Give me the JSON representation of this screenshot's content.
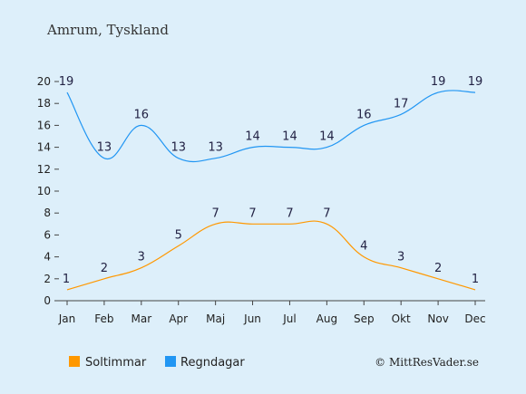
{
  "chart_data": {
    "type": "line",
    "title": "Amrum, Tyskland",
    "categories": [
      "Jan",
      "Feb",
      "Mar",
      "Apr",
      "Maj",
      "Jun",
      "Jul",
      "Aug",
      "Sep",
      "Okt",
      "Nov",
      "Dec"
    ],
    "ylim": [
      0,
      20
    ],
    "yticks": [
      0,
      2,
      4,
      6,
      8,
      10,
      12,
      14,
      16,
      18,
      20
    ],
    "grid": false,
    "legend_position": "bottom-left",
    "series": [
      {
        "name": "Soltimmar",
        "color": "#ff9800",
        "values": [
          1,
          2,
          3,
          5,
          7,
          7,
          7,
          7,
          4,
          3,
          2,
          1
        ]
      },
      {
        "name": "Regndagar",
        "color": "#2196f3",
        "values": [
          19,
          13,
          16,
          13,
          13,
          14,
          14,
          14,
          16,
          17,
          19,
          19
        ]
      }
    ],
    "credit": "© MittResVader.se"
  }
}
